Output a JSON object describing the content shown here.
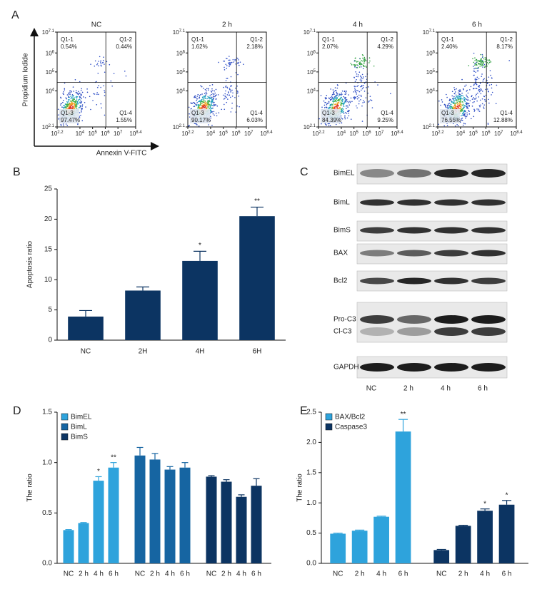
{
  "chart_data": [
    {
      "type": "flow_cytometry",
      "panel_label": "A",
      "xlabel": "Annexin V-FITC",
      "ylabel": "Propidium Iodide",
      "log_base": 10,
      "xlim": [
        2.2,
        8.4
      ],
      "ylim": [
        2.1,
        7.1
      ],
      "xticks": [
        2.2,
        4,
        5,
        6,
        7,
        8.4
      ],
      "yticks": [
        2.1,
        4,
        5,
        6,
        7.1
      ],
      "quadrants": [
        "Q1-1",
        "Q1-2",
        "Q1-3",
        "Q1-4"
      ],
      "plots": [
        {
          "title": "NC",
          "values": [
            0.54,
            0.44,
            97.47,
            1.55
          ],
          "value_labels": [
            "0.54%",
            "0.44%",
            "97.47%",
            "1.55%"
          ]
        },
        {
          "title": "2 h",
          "values": [
            1.62,
            2.18,
            90.17,
            6.03
          ],
          "value_labels": [
            "1.62%",
            "2.18%",
            "90.17%",
            "6.03%"
          ]
        },
        {
          "title": "4 h",
          "values": [
            2.07,
            4.29,
            84.39,
            9.25
          ],
          "value_labels": [
            "2.07%",
            "4.29%",
            "84.39%",
            "9.25%"
          ]
        },
        {
          "title": "6 h",
          "values": [
            2.4,
            8.17,
            76.55,
            12.88
          ],
          "value_labels": [
            "2.40%",
            "8.17%",
            "76.55%",
            "12.88%"
          ]
        }
      ]
    },
    {
      "type": "bar",
      "panel_label": "B",
      "ylabel": "Apoptosis ratio",
      "categories": [
        "NC",
        "2H",
        "4H",
        "6H"
      ],
      "values": [
        3.9,
        8.2,
        13.1,
        20.5
      ],
      "errors": [
        1.0,
        0.6,
        1.6,
        1.5
      ],
      "annotations": [
        null,
        null,
        "*",
        "**"
      ],
      "color": "#0c3462",
      "ylim": [
        0,
        25
      ],
      "yticks": [
        0,
        5,
        10,
        15,
        20,
        25
      ]
    },
    {
      "type": "western_blot",
      "panel_label": "C",
      "proteins": [
        "BimEL",
        "BimL",
        "BimS",
        "BAX",
        "Bcl2",
        "Pro-C3",
        "Cl-C3",
        "GAPDH"
      ],
      "lanes": [
        "NC",
        "2 h",
        "4 h",
        "6 h"
      ]
    },
    {
      "type": "grouped_bar",
      "panel_label": "D",
      "ylabel": "The ratio",
      "categories": [
        "NC",
        "2 h",
        "4 h",
        "6 h"
      ],
      "series": [
        {
          "name": "BimEL",
          "color": "#2ea3dc",
          "values": [
            0.33,
            0.4,
            0.82,
            0.95
          ],
          "errors": [
            0.005,
            0.005,
            0.04,
            0.05
          ],
          "annotations": [
            null,
            null,
            "*",
            "**"
          ]
        },
        {
          "name": "BimL",
          "color": "#1665a2",
          "values": [
            1.07,
            1.03,
            0.93,
            0.95
          ],
          "errors": [
            0.08,
            0.06,
            0.03,
            0.05
          ],
          "annotations": [
            null,
            null,
            null,
            null
          ]
        },
        {
          "name": "BimS",
          "color": "#0c3462",
          "values": [
            0.86,
            0.81,
            0.66,
            0.77
          ],
          "errors": [
            0.01,
            0.02,
            0.02,
            0.07
          ],
          "annotations": [
            null,
            null,
            null,
            null
          ]
        }
      ],
      "ylim": [
        0,
        1.5
      ],
      "yticks": [
        {
          "value": 0,
          "label": "0.0"
        },
        0.5,
        {
          "value": 1,
          "label": "1.0"
        },
        1.5
      ]
    },
    {
      "type": "grouped_bar",
      "panel_label": "E",
      "ylabel": "The ratio",
      "categories": [
        "NC",
        "2 h",
        "4 h",
        "6 h"
      ],
      "series": [
        {
          "name": "BAX/Bcl2",
          "color": "#2ea3dc",
          "values": [
            0.49,
            0.54,
            0.77,
            2.18
          ],
          "errors": [
            0.01,
            0.01,
            0.01,
            0.2
          ],
          "annotations": [
            null,
            null,
            null,
            "**"
          ]
        },
        {
          "name": "Caspase3",
          "color": "#0c3462",
          "values": [
            0.22,
            0.62,
            0.87,
            0.97
          ],
          "errors": [
            0.01,
            0.01,
            0.03,
            0.07
          ],
          "annotations": [
            null,
            null,
            "*",
            "*"
          ]
        }
      ],
      "ylim": [
        0,
        2.5
      ],
      "yticks": [
        {
          "value": 0,
          "label": "0.0"
        },
        0.5,
        {
          "value": 1,
          "label": "1.0"
        },
        1.5,
        {
          "value": 2,
          "label": "2.0"
        },
        2.5
      ]
    }
  ]
}
